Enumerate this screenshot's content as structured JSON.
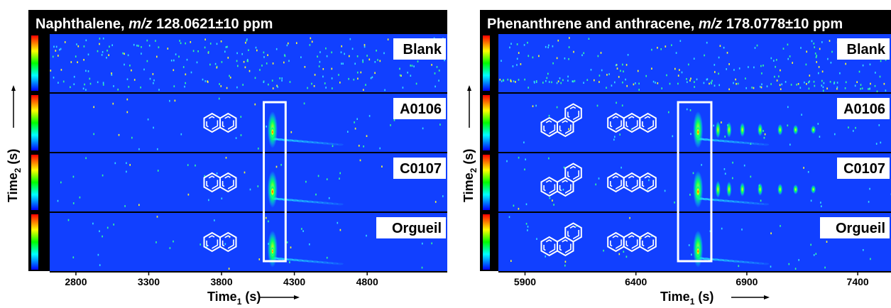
{
  "chart_data": [
    {
      "type": "heatmap",
      "title_prefix": "Naphthalene, ",
      "title_mz": "m/z",
      "title_suffix": " 128.0621±10 ppm",
      "samples": [
        "Blank",
        "A0106",
        "C0107",
        "Orgueil"
      ],
      "xlabel": "Time",
      "xlabel_sub": "1",
      "xlabel_unit": " (s)",
      "ylabel": "Time",
      "ylabel_sub": "2",
      "ylabel_unit": " (s)",
      "xticks": [
        2800,
        3300,
        3800,
        4300,
        4800
      ],
      "xlim": [
        2620,
        5350
      ],
      "structures": [
        "naphthalene"
      ],
      "highlight_x": [
        4090,
        4240
      ],
      "hotspots": [
        {
          "x": 4150,
          "intensity": 0.85
        },
        {
          "x": 4150,
          "intensity": 1.0
        },
        {
          "x": 4150,
          "intensity": 0.7
        }
      ],
      "colorscale": [
        "#0000ff",
        "#00ffff",
        "#00ff00",
        "#ffff00",
        "#ff0000"
      ]
    },
    {
      "type": "heatmap",
      "title_prefix": "Phenanthrene and anthracene, ",
      "title_mz": "m/z",
      "title_suffix": " 178.0778±10 ppm",
      "samples": [
        "Blank",
        "A0106",
        "C0107",
        "Orgueil"
      ],
      "xlabel": "Time",
      "xlabel_sub": "1",
      "xlabel_unit": " (s)",
      "ylabel": "Time",
      "ylabel_sub": "2",
      "ylabel_unit": " (s)",
      "xticks": [
        5900,
        6400,
        6900,
        7400
      ],
      "xlim": [
        5780,
        7550
      ],
      "structures": [
        "phenanthrene",
        "anthracene"
      ],
      "highlight_x": [
        6590,
        6740
      ],
      "hotspots": [
        {
          "x": 6680,
          "intensity": 0.9
        },
        {
          "x": 6680,
          "intensity": 1.0
        },
        {
          "x": 6680,
          "intensity": 0.9
        }
      ],
      "colorscale": [
        "#0000ff",
        "#00ffff",
        "#00ff00",
        "#ffff00",
        "#ff0000"
      ]
    }
  ]
}
